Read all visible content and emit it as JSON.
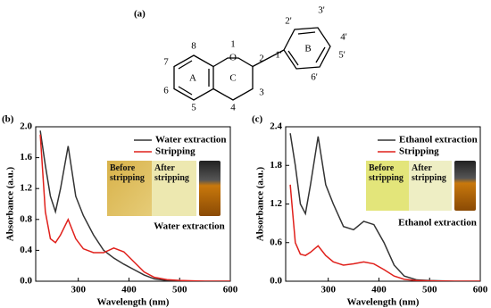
{
  "structure": {
    "label": "(a)",
    "oxygen": "O",
    "rings": [
      "A",
      "C",
      "B"
    ],
    "atoms": [
      "1",
      "2",
      "3",
      "4",
      "5",
      "6",
      "7",
      "8",
      "1'",
      "2'",
      "3'",
      "4'",
      "5'",
      "6'"
    ]
  },
  "chart_data": [
    {
      "type": "line",
      "panel_label": "(b)",
      "xlabel": "Wavelength (nm)",
      "ylabel": "Absorbance (a.u.)",
      "x": [
        225,
        235,
        245,
        255,
        265,
        280,
        295,
        310,
        330,
        350,
        370,
        390,
        410,
        430,
        450,
        475,
        500,
        550,
        600
      ],
      "series": [
        {
          "name": "Water extraction",
          "color": "#333333",
          "values": [
            1.95,
            1.5,
            1.1,
            0.9,
            1.2,
            1.75,
            1.1,
            0.85,
            0.6,
            0.4,
            0.3,
            0.22,
            0.15,
            0.08,
            0.03,
            0.01,
            0.005,
            0,
            0
          ]
        },
        {
          "name": "Stripping",
          "color": "#e0201b",
          "values": [
            1.9,
            0.9,
            0.55,
            0.5,
            0.6,
            0.8,
            0.55,
            0.42,
            0.37,
            0.37,
            0.43,
            0.38,
            0.25,
            0.12,
            0.05,
            0.02,
            0.01,
            0,
            0
          ]
        }
      ],
      "xlim": [
        216,
        600
      ],
      "ylim": [
        0,
        2
      ],
      "xticks": [
        300,
        400,
        500,
        600
      ],
      "yticks": [
        {
          "value": 0,
          "label": "0.0"
        },
        0.4,
        0.8,
        1.2,
        1.6,
        {
          "value": 2,
          "label": "2.0"
        }
      ],
      "inset": {
        "before": "Before stripping",
        "after": "After stripping",
        "caption": "Water extraction"
      }
    },
    {
      "type": "line",
      "panel_label": "(c)",
      "xlabel": "Wavelength (nm)",
      "ylabel": "Absorbance (a.u.)",
      "x": [
        225,
        235,
        245,
        255,
        265,
        280,
        295,
        310,
        330,
        350,
        370,
        390,
        410,
        430,
        450,
        475,
        500,
        550,
        600
      ],
      "series": [
        {
          "name": "Ethanol extraction",
          "color": "#333333",
          "values": [
            2.3,
            1.8,
            1.2,
            1.05,
            1.5,
            2.25,
            1.5,
            1.2,
            0.85,
            0.8,
            0.93,
            0.88,
            0.6,
            0.25,
            0.08,
            0.02,
            0.01,
            0,
            0
          ]
        },
        {
          "name": "Stripping",
          "color": "#e0201b",
          "values": [
            1.5,
            0.6,
            0.42,
            0.4,
            0.45,
            0.55,
            0.4,
            0.3,
            0.25,
            0.27,
            0.3,
            0.27,
            0.18,
            0.08,
            0.03,
            0.01,
            0.005,
            0,
            0
          ]
        }
      ],
      "xlim": [
        216,
        600
      ],
      "ylim": [
        0,
        2.4
      ],
      "xticks": [
        300,
        400,
        500,
        600
      ],
      "yticks": [
        {
          "value": 0,
          "label": "0.0"
        },
        0.6,
        1.2,
        1.8,
        2.4
      ],
      "inset": {
        "before": "Before stripping",
        "after": "After stripping",
        "caption": "Ethanol extraction"
      }
    }
  ]
}
